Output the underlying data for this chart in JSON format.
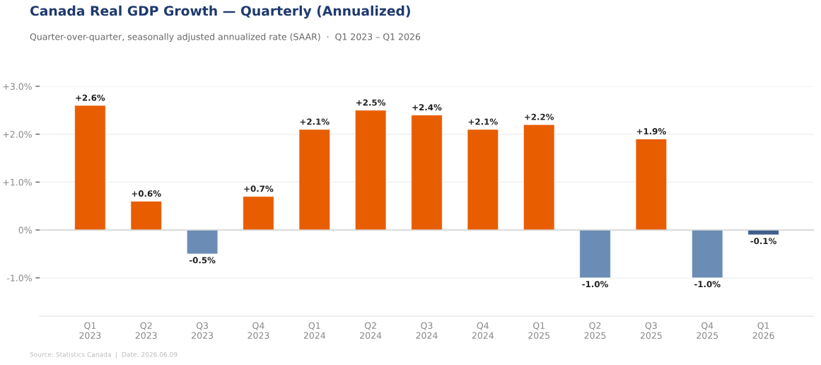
{
  "chart_data": {
    "type": "bar",
    "title": "Canada Real GDP Growth — Quarterly (Annualized)",
    "subtitle": "Quarter-over-quarter, seasonally adjusted annualized rate (SAAR)  ·  Q1 2023 – Q1 2026",
    "categories": [
      "Q1\n2023",
      "Q2\n2023",
      "Q3\n2023",
      "Q4\n2023",
      "Q1\n2024",
      "Q2\n2024",
      "Q3\n2024",
      "Q4\n2024",
      "Q1\n2025",
      "Q2\n2025",
      "Q3\n2025",
      "Q4\n2025",
      "Q1\n2026"
    ],
    "values": [
      2.6,
      0.6,
      -0.5,
      0.7,
      2.1,
      2.5,
      2.4,
      2.1,
      2.2,
      -1.0,
      1.9,
      -1.0,
      -0.1
    ],
    "colors": [
      "#e85d00",
      "#e85d00",
      "#6b8cb5",
      "#e85d00",
      "#e85d00",
      "#e85d00",
      "#e85d00",
      "#e85d00",
      "#e85d00",
      "#6b8cb5",
      "#e85d00",
      "#6b8cb5",
      "#3f5f8c"
    ],
    "value_labels": [
      "+2.6%",
      "+0.6%",
      "-0.5%",
      "+0.7%",
      "+2.1%",
      "+2.5%",
      "+2.4%",
      "+2.1%",
      "+2.2%",
      "-1.0%",
      "+1.9%",
      "-1.0%",
      "-0.1%"
    ],
    "ylim": [
      -1.8,
      3.0
    ],
    "yticks": [
      {
        "value": -1,
        "label": "-1.0%"
      },
      {
        "value": 0,
        "label": "0%"
      },
      {
        "value": 1,
        "label": "+1.0%"
      },
      {
        "value": 2,
        "label": "+2.0%"
      },
      {
        "value": 3,
        "label": "+3.0%"
      }
    ],
    "grid": "y",
    "ref_lines": [
      {
        "axis": "y",
        "value": 0,
        "color": "#cccccc"
      }
    ],
    "annotations": [
      "Source: Statistics Canada  |  Date: 2026.06.09"
    ]
  }
}
